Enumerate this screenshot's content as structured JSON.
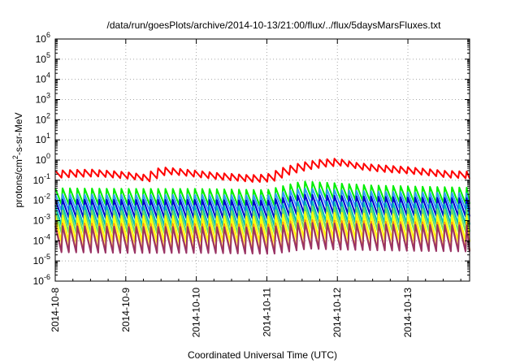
{
  "chart_data": {
    "type": "line",
    "title": "/data/run/goesPlots/archive/2014-10-13/21:00/flux/../flux/5daysMarsFluxes.txt",
    "xlabel": "Coordinated Universal Time (UTC)",
    "ylabel": {
      "pre": "protons/cm",
      "sup": "2",
      "post": "-s-sr-MeV"
    },
    "y_scale": "log",
    "ylim": [
      1e-06,
      1000000
    ],
    "xlim": [
      "2014-10-08",
      "2014-10-13T21:00"
    ],
    "x_ticks": [
      "2014-10-8",
      "2014-10-9",
      "2014-10-10",
      "2014-10-11",
      "2014-10-12",
      "2014-10-13"
    ],
    "y_ticks": [
      {
        "base": "10",
        "exp": "-6"
      },
      {
        "base": "10",
        "exp": "-5"
      },
      {
        "base": "10",
        "exp": "-4"
      },
      {
        "base": "10",
        "exp": "-3"
      },
      {
        "base": "10",
        "exp": "-2"
      },
      {
        "base": "10",
        "exp": "-1"
      },
      {
        "base": "10",
        "exp": "0"
      },
      {
        "base": "10",
        "exp": "1"
      },
      {
        "base": "10",
        "exp": "2"
      },
      {
        "base": "10",
        "exp": "3"
      },
      {
        "base": "10",
        "exp": "4"
      },
      {
        "base": "10",
        "exp": "5"
      },
      {
        "base": "10",
        "exp": "6"
      }
    ],
    "grid": true,
    "legend": "none",
    "series": [
      {
        "color": "#ff0000",
        "x": [
          "2014-10-08T00:00",
          "2014-10-08T06:00",
          "2014-10-08T12:00",
          "2014-10-08T18:00",
          "2014-10-09T00:00",
          "2014-10-09T06:00",
          "2014-10-09T12:00",
          "2014-10-09T18:00",
          "2014-10-10T00:00",
          "2014-10-10T06:00",
          "2014-10-10T12:00",
          "2014-10-10T18:00",
          "2014-10-11T00:00",
          "2014-10-11T06:00",
          "2014-10-11T12:00",
          "2014-10-11T18:00",
          "2014-10-12T00:00",
          "2014-10-12T06:00",
          "2014-10-12T12:00",
          "2014-10-12T18:00",
          "2014-10-13T00:00",
          "2014-10-13T06:00",
          "2014-10-13T12:00",
          "2014-10-13T21:00"
        ],
        "y": [
          0.2,
          0.22,
          0.23,
          0.2,
          0.17,
          0.13,
          0.3,
          0.25,
          0.2,
          0.16,
          0.14,
          0.12,
          0.13,
          0.3,
          0.5,
          0.7,
          0.8,
          0.5,
          0.4,
          0.35,
          0.3,
          0.25,
          0.2,
          0.18
        ],
        "sawtooth": 0.35
      },
      {
        "color": "#00ee00",
        "x": [
          "2014-10-08T00:00",
          "2014-10-09T00:00",
          "2014-10-10T00:00",
          "2014-10-11T00:00",
          "2014-10-11T12:00",
          "2014-10-12T00:00",
          "2014-10-12T12:00",
          "2014-10-13T00:00",
          "2014-10-13T21:00"
        ],
        "y": [
          0.016,
          0.015,
          0.015,
          0.013,
          0.035,
          0.028,
          0.022,
          0.02,
          0.017
        ],
        "sawtooth": 0.8
      },
      {
        "color": "#3399ff",
        "x": [
          "2014-10-08T00:00",
          "2014-10-09T00:00",
          "2014-10-10T00:00",
          "2014-10-11T00:00",
          "2014-10-11T12:00",
          "2014-10-12T00:00",
          "2014-10-12T12:00",
          "2014-10-13T00:00",
          "2014-10-13T21:00"
        ],
        "y": [
          0.008,
          0.0075,
          0.0075,
          0.007,
          0.016,
          0.013,
          0.011,
          0.01,
          0.009
        ],
        "sawtooth": 0.8
      },
      {
        "color": "#0000cc",
        "x": [
          "2014-10-08T00:00",
          "2014-10-09T00:00",
          "2014-10-10T00:00",
          "2014-10-11T00:00",
          "2014-10-11T12:00",
          "2014-10-12T00:00",
          "2014-10-12T12:00",
          "2014-10-13T00:00",
          "2014-10-13T21:00"
        ],
        "y": [
          0.004,
          0.0038,
          0.0038,
          0.0035,
          0.007,
          0.006,
          0.0055,
          0.005,
          0.0045
        ],
        "sawtooth": 0.9
      },
      {
        "color": "#00bbbb",
        "x": [
          "2014-10-08T00:00",
          "2014-10-09T00:00",
          "2014-10-10T00:00",
          "2014-10-11T00:00",
          "2014-10-11T12:00",
          "2014-10-12T00:00",
          "2014-10-12T12:00",
          "2014-10-13T00:00",
          "2014-10-13T21:00"
        ],
        "y": [
          0.0018,
          0.0017,
          0.0017,
          0.0016,
          0.003,
          0.0026,
          0.0024,
          0.0022,
          0.002
        ],
        "sawtooth": 1.0
      },
      {
        "color": "#66dd66",
        "x": [
          "2014-10-08T00:00",
          "2014-10-09T00:00",
          "2014-10-10T00:00",
          "2014-10-11T00:00",
          "2014-10-11T12:00",
          "2014-10-12T00:00",
          "2014-10-12T12:00",
          "2014-10-13T00:00",
          "2014-10-13T21:00"
        ],
        "y": [
          0.0009,
          0.00085,
          0.00085,
          0.0008,
          0.0015,
          0.0013,
          0.0012,
          0.0011,
          0.001
        ],
        "sawtooth": 1.1
      },
      {
        "color": "#ffff00",
        "x": [
          "2014-10-08T00:00",
          "2014-10-09T00:00",
          "2014-10-10T00:00",
          "2014-10-11T00:00",
          "2014-10-11T12:00",
          "2014-10-12T00:00",
          "2014-10-12T12:00",
          "2014-10-13T00:00",
          "2014-10-13T21:00"
        ],
        "y": [
          0.0004,
          0.00038,
          0.00038,
          0.00035,
          0.0006,
          0.00055,
          0.0005,
          0.00045,
          0.0004
        ],
        "sawtooth": 1.3
      },
      {
        "color": "#ff9900",
        "x": [
          "2014-10-08T00:00",
          "2014-10-09T00:00",
          "2014-10-10T00:00",
          "2014-10-11T00:00",
          "2014-10-11T12:00",
          "2014-10-12T00:00",
          "2014-10-12T12:00",
          "2014-10-13T00:00",
          "2014-10-13T21:00"
        ],
        "y": [
          0.00015,
          0.00014,
          0.00014,
          0.00013,
          0.00022,
          0.0002,
          0.00018,
          0.00017,
          0.00016
        ],
        "sawtooth": 1.4
      },
      {
        "color": "#993366",
        "x": [
          "2014-10-08T00:00",
          "2014-10-09T00:00",
          "2014-10-10T00:00",
          "2014-10-11T00:00",
          "2014-10-11T12:00",
          "2014-10-12T00:00",
          "2014-10-12T12:00",
          "2014-10-13T00:00",
          "2014-10-13T21:00"
        ],
        "y": [
          0.00012,
          0.00011,
          0.00011,
          0.0001,
          0.00018,
          0.00016,
          0.00015,
          0.00014,
          0.00013
        ],
        "sawtooth": 1.3
      }
    ]
  }
}
